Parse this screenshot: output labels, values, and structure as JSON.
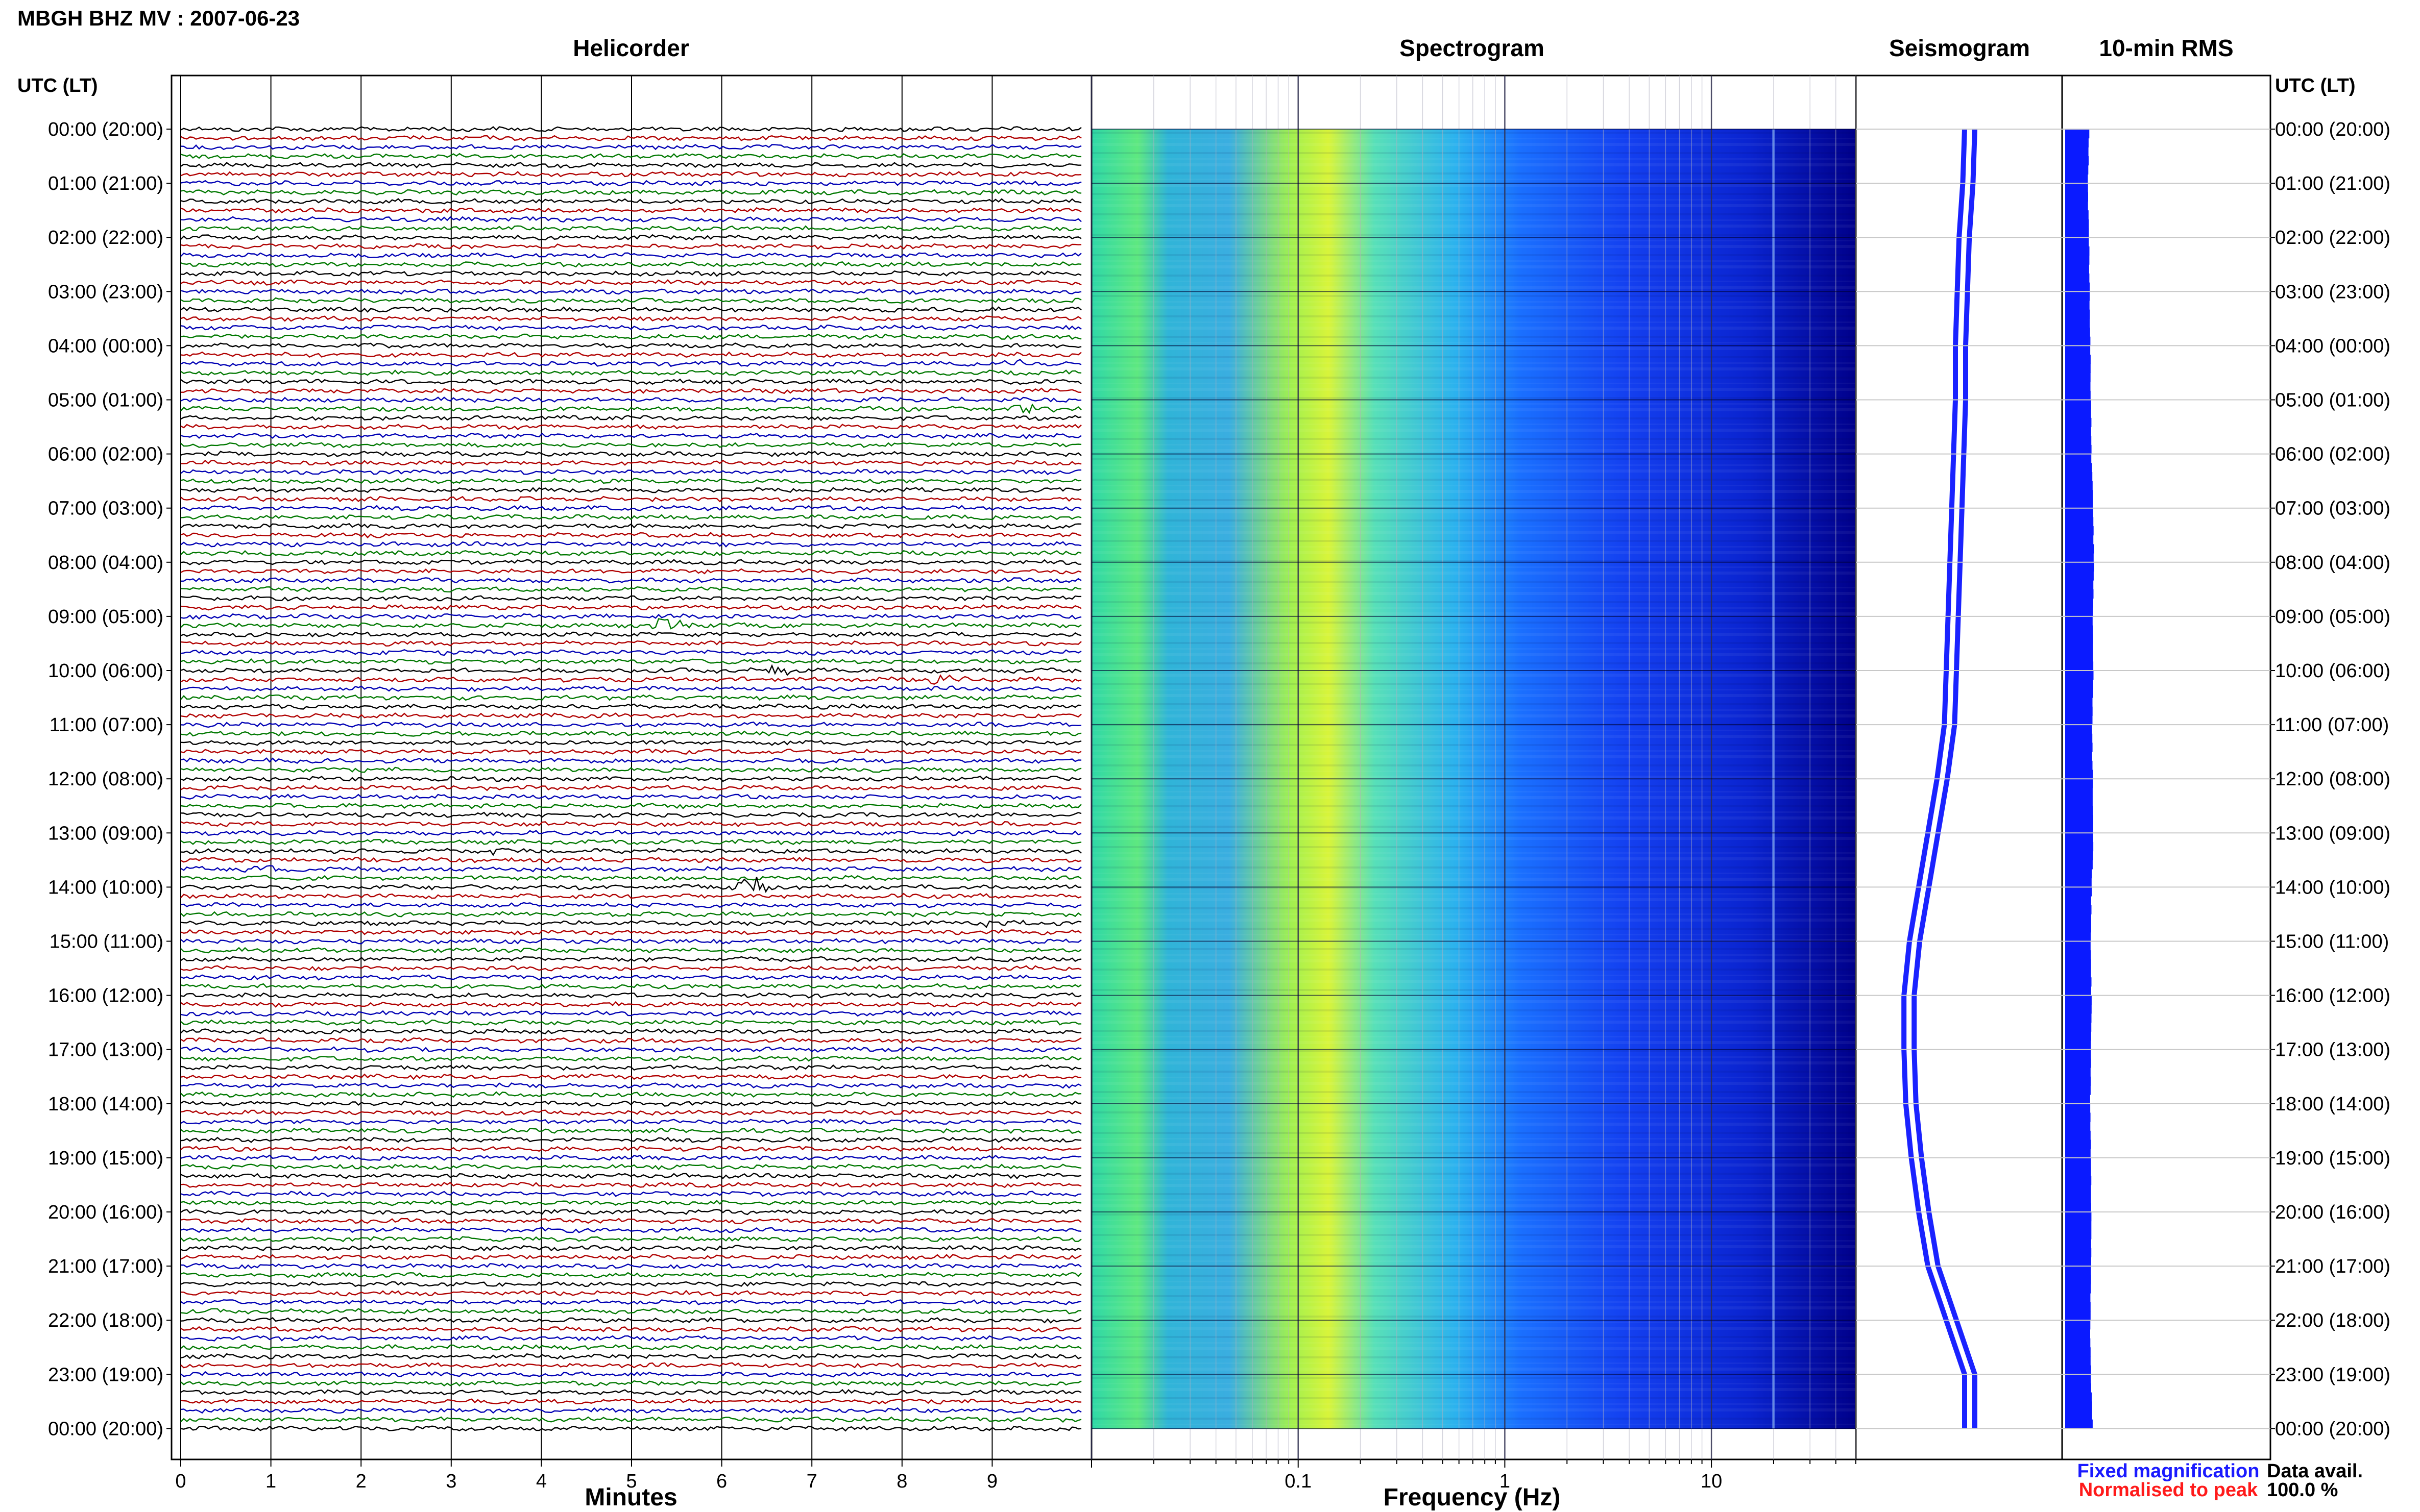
{
  "page": {
    "title": "MBGH BHZ MV : 2007-06-23",
    "axis_left_header": "UTC (LT)",
    "axis_right_header": "UTC (LT)"
  },
  "colors": {
    "trace_cycle": [
      "#000000",
      "#b00000",
      "#0000b4",
      "#007800"
    ],
    "seismogram": "#1a22ff",
    "rms": "#0a1aff",
    "fixed_magnification": "#1a1aff",
    "normalised_to_peak": "#ff1a1a"
  },
  "legend": {
    "fixed_magnification": "Fixed magnification",
    "normalised_to_peak": "Normalised to peak",
    "data_avail_label": "Data avail.",
    "data_avail_value": "100.0 %"
  },
  "chart_data": [
    {
      "type": "line",
      "title": "Helicorder",
      "xlabel": "Minutes",
      "x_ticks": [
        "0",
        "1",
        "2",
        "3",
        "4",
        "5",
        "6",
        "7",
        "8",
        "9"
      ],
      "xlim": [
        0,
        10
      ],
      "time_labels_left": [
        "00:00 (20:00)",
        "01:00 (21:00)",
        "02:00 (22:00)",
        "03:00 (23:00)",
        "04:00 (00:00)",
        "05:00 (01:00)",
        "06:00 (02:00)",
        "07:00 (03:00)",
        "08:00 (04:00)",
        "09:00 (05:00)",
        "10:00 (06:00)",
        "11:00 (07:00)",
        "12:00 (08:00)",
        "13:00 (09:00)",
        "14:00 (10:00)",
        "15:00 (11:00)",
        "16:00 (12:00)",
        "17:00 (13:00)",
        "18:00 (14:00)",
        "19:00 (15:00)",
        "20:00 (16:00)",
        "21:00 (17:00)",
        "22:00 (18:00)",
        "23:00 (19:00)",
        "00:00 (20:00)"
      ],
      "rows_per_hour": 6,
      "events": [
        {
          "row": 26,
          "minute": 9.3,
          "amp": 0.6
        },
        {
          "row": 31,
          "minute": 9.4,
          "amp": 0.8
        },
        {
          "row": 55,
          "minute": 5.4,
          "amp": 1.4
        },
        {
          "row": 58,
          "minute": 2.7,
          "amp": 0.6
        },
        {
          "row": 60,
          "minute": 6.6,
          "amp": 1.2
        },
        {
          "row": 61,
          "minute": 8.5,
          "amp": 1.0
        },
        {
          "row": 80,
          "minute": 3.5,
          "amp": 0.5
        },
        {
          "row": 82,
          "minute": 1.0,
          "amp": 0.7
        },
        {
          "row": 84,
          "minute": 6.3,
          "amp": 2.4
        },
        {
          "row": 88,
          "minute": 9.0,
          "amp": 0.8
        }
      ]
    },
    {
      "type": "heatmap",
      "title": "Spectrogram",
      "xlabel": "Frequency (Hz)",
      "x_scale": "log",
      "xlim": [
        0.01,
        50
      ],
      "x_ticks": [
        "0.1",
        "1",
        "10"
      ],
      "peak_frequency_hz": 0.25,
      "spectral_lines_hz": [
        20
      ],
      "grid": true
    },
    {
      "type": "line",
      "title": "Seismogram",
      "description_values_note": "",
      "offset": [
        0.55,
        0.54,
        0.52,
        0.51,
        0.5,
        0.5,
        0.49,
        0.48,
        0.47,
        0.46,
        0.45,
        0.44,
        0.4,
        0.35,
        0.3,
        0.25,
        0.22,
        0.22,
        0.23,
        0.26,
        0.3,
        0.35,
        0.45,
        0.55,
        0.55
      ]
    },
    {
      "type": "bar",
      "title": "10-min RMS",
      "x": [
        "00:00",
        "01:00",
        "02:00",
        "03:00",
        "04:00",
        "05:00",
        "06:00",
        "07:00",
        "08:00",
        "09:00",
        "10:00",
        "11:00",
        "12:00",
        "13:00",
        "14:00",
        "15:00",
        "16:00",
        "17:00",
        "18:00",
        "19:00",
        "20:00",
        "21:00",
        "22:00",
        "23:00",
        "00:00"
      ],
      "values": [
        0.78,
        0.74,
        0.78,
        0.8,
        0.82,
        0.84,
        0.86,
        0.92,
        0.94,
        0.9,
        0.92,
        0.88,
        0.9,
        0.92,
        0.86,
        0.84,
        0.86,
        0.84,
        0.82,
        0.84,
        0.86,
        0.84,
        0.82,
        0.84,
        0.9
      ],
      "xlim_relative": [
        0,
        1
      ]
    }
  ]
}
